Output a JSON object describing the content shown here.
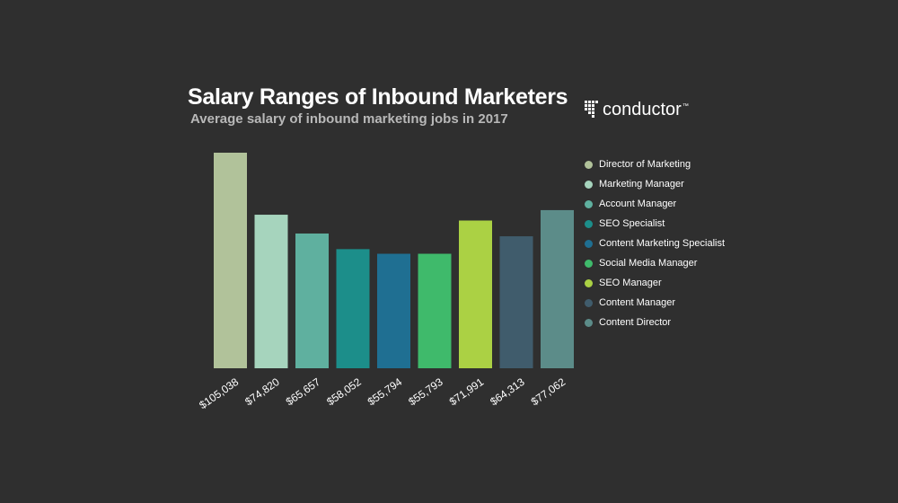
{
  "header": {
    "title": "Salary Ranges of Inbound Marketers",
    "subtitle": "Average salary of inbound marketing jobs in 2017"
  },
  "logo": {
    "text": "conductor",
    "icon": "conductor-dot-grid-icon"
  },
  "chart_data": {
    "type": "bar",
    "title": "Salary Ranges of Inbound Marketers",
    "subtitle": "Average salary of inbound marketing jobs in 2017",
    "categories": [
      "Director of Marketing",
      "Marketing Manager",
      "Account Manager",
      "SEO  Specialist",
      "Content Marketing Specialist",
      "Social Media Manager",
      "SEO Manager",
      "Content Manager",
      "Content Director"
    ],
    "values": [
      105038,
      74820,
      65657,
      58052,
      55794,
      55793,
      71991,
      64313,
      77062
    ],
    "labels": [
      "$105,038",
      "$74,820",
      "$65,657",
      "$58,052",
      "$55,794",
      "$55,793",
      "$71,991",
      "$64,313",
      "$77,062"
    ],
    "colors": [
      "#b1c29a",
      "#a6d4bd",
      "#5fb09f",
      "#1c8e8a",
      "#1f6f92",
      "#3fba6b",
      "#abd144",
      "#405c6c",
      "#5c8c89"
    ],
    "ylim": [
      0,
      105038
    ],
    "grid": false,
    "legend_position": "right"
  }
}
